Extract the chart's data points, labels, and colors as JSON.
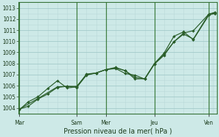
{
  "xlabel": "Pression niveau de la mer( hPa )",
  "ylim": [
    1003.5,
    1013.5
  ],
  "xlim": [
    0,
    10.2
  ],
  "yticks": [
    1004,
    1005,
    1006,
    1007,
    1008,
    1009,
    1010,
    1011,
    1012,
    1013
  ],
  "xtick_positions": [
    0.05,
    3.0,
    4.5,
    7.0,
    9.8
  ],
  "xtick_labels": [
    "Mar",
    "Sam",
    "Mer",
    "Jeu",
    "Ven"
  ],
  "vline_positions": [
    0.05,
    3.0,
    4.5,
    7.0,
    9.8
  ],
  "background_color": "#cde9e7",
  "grid_color_major": "#a0c8c8",
  "grid_color_minor": "#b8d8d8",
  "line_color": "#2a5e2a",
  "line1_x": [
    0.05,
    0.5,
    1.0,
    1.5,
    2.0,
    2.5,
    3.0,
    3.5,
    4.0,
    4.5,
    5.0,
    5.5,
    6.0,
    6.5,
    7.0,
    7.5,
    8.0,
    8.5,
    9.0,
    9.8,
    10.1
  ],
  "line1_y": [
    1003.9,
    1004.15,
    1004.8,
    1005.25,
    1005.85,
    1005.95,
    1005.95,
    1007.0,
    1007.15,
    1007.45,
    1007.6,
    1007.35,
    1006.6,
    1006.65,
    1008.0,
    1008.85,
    1009.95,
    1010.65,
    1010.2,
    1012.45,
    1012.6
  ],
  "line2_x": [
    0.05,
    0.5,
    1.0,
    1.5,
    2.0,
    2.5,
    3.0,
    3.5,
    4.0,
    4.5,
    5.0,
    5.5,
    6.0,
    6.5,
    7.0,
    7.5,
    8.0,
    8.5,
    9.0,
    9.8,
    10.1
  ],
  "line2_y": [
    1003.85,
    1004.55,
    1005.0,
    1005.75,
    1006.45,
    1005.8,
    1005.9,
    1007.05,
    1007.15,
    1007.45,
    1007.55,
    1007.1,
    1006.95,
    1006.6,
    1008.0,
    1008.95,
    1010.45,
    1010.85,
    1010.15,
    1012.35,
    1012.5
  ],
  "line3_x": [
    0.05,
    1.0,
    2.0,
    2.5,
    3.0,
    3.5,
    4.0,
    4.5,
    5.0,
    5.5,
    6.0,
    6.5,
    7.0,
    7.5,
    8.0,
    8.5,
    9.0,
    9.8,
    10.1
  ],
  "line3_y": [
    1003.9,
    1004.85,
    1005.9,
    1005.95,
    1005.85,
    1006.95,
    1007.15,
    1007.45,
    1007.65,
    1007.35,
    1006.75,
    1006.6,
    1007.95,
    1008.75,
    1009.95,
    1010.75,
    1010.95,
    1012.45,
    1012.55
  ]
}
